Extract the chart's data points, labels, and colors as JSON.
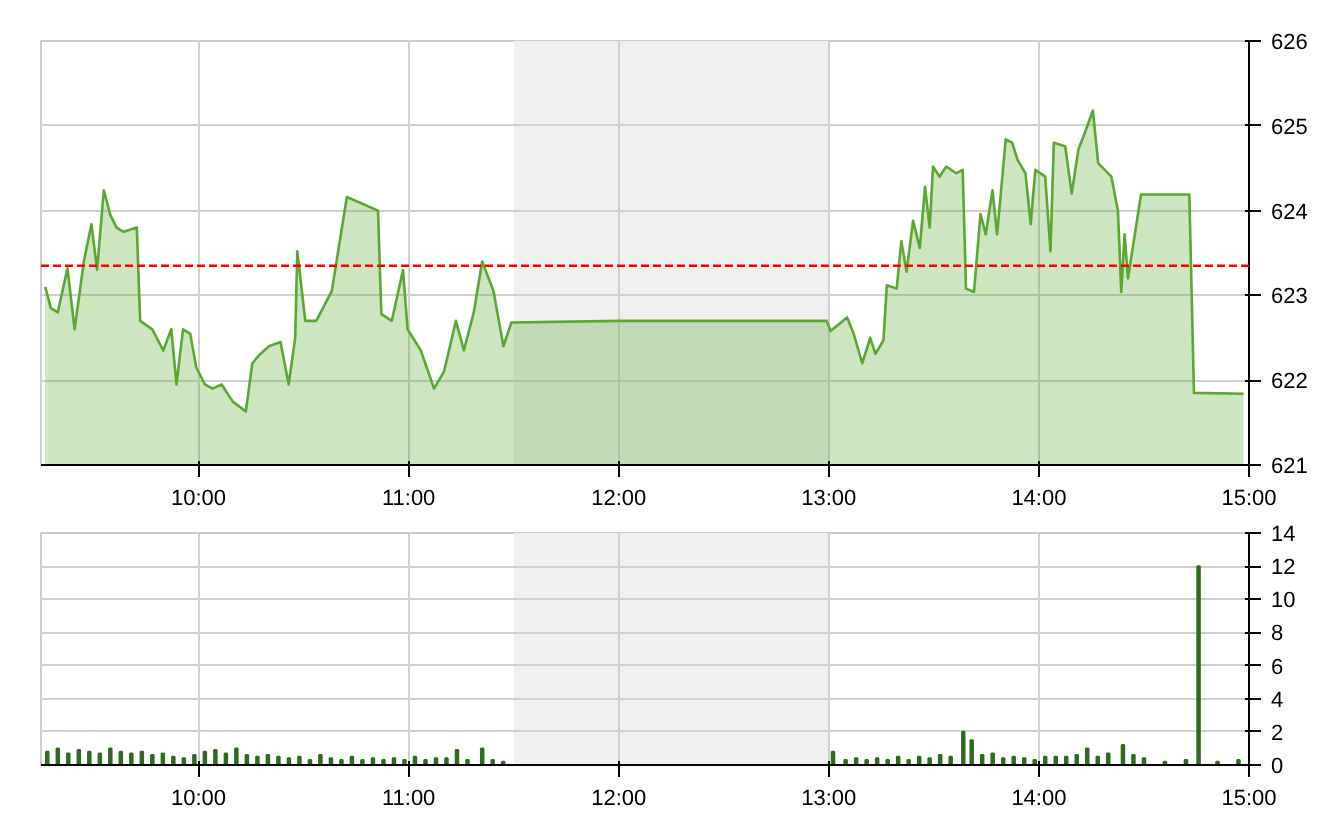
{
  "chart_data": [
    {
      "type": "area",
      "series": [
        {
          "color": "#5aa832",
          "x": [
            9.27,
            9.297,
            9.33,
            9.376,
            9.41,
            9.454,
            9.49,
            9.517,
            9.549,
            9.58,
            9.61,
            9.643,
            9.706,
            9.722,
            9.78,
            9.832,
            9.87,
            9.895,
            9.926,
            9.96,
            9.989,
            10.03,
            10.067,
            10.11,
            10.162,
            10.225,
            10.256,
            10.29,
            10.335,
            10.39,
            10.429,
            10.46,
            10.47,
            10.508,
            10.56,
            10.634,
            10.706,
            10.854,
            10.87,
            10.92,
            10.973,
            10.995,
            11.058,
            11.121,
            11.168,
            11.225,
            11.263,
            11.31,
            11.35,
            11.404,
            11.451,
            11.489,
            12.0,
            12.99,
            13.008,
            13.087,
            13.118,
            13.159,
            13.197,
            13.222,
            13.26,
            13.276,
            13.323,
            13.345,
            13.37,
            13.401,
            13.433,
            13.458,
            13.48,
            13.496,
            13.527,
            13.559,
            13.606,
            13.637,
            13.653,
            13.691,
            13.722,
            13.747,
            13.779,
            13.801,
            13.842,
            13.873,
            13.898,
            13.936,
            13.961,
            13.983,
            14.03,
            14.055,
            14.071,
            14.125,
            14.156,
            14.188,
            14.219,
            14.257,
            14.282,
            14.345,
            14.376,
            14.392,
            14.408,
            14.424,
            14.486,
            14.716,
            14.738,
            14.974
          ],
          "values": [
            623.1,
            622.85,
            622.8,
            623.32,
            622.6,
            623.4,
            623.84,
            623.3,
            624.24,
            623.95,
            623.8,
            623.75,
            623.8,
            622.7,
            622.6,
            622.35,
            622.6,
            621.95,
            622.6,
            622.55,
            622.15,
            621.95,
            621.9,
            621.95,
            621.75,
            621.63,
            622.2,
            622.3,
            622.4,
            622.45,
            621.95,
            622.5,
            623.52,
            622.7,
            622.7,
            623.05,
            624.16,
            624.0,
            622.78,
            622.7,
            623.3,
            622.6,
            622.35,
            621.9,
            622.1,
            622.7,
            622.35,
            622.8,
            623.4,
            623.05,
            622.4,
            622.68,
            622.7,
            622.7,
            622.58,
            622.74,
            622.55,
            622.2,
            622.5,
            622.31,
            622.47,
            623.12,
            623.08,
            623.64,
            623.28,
            623.88,
            623.56,
            624.28,
            623.8,
            624.52,
            624.4,
            624.52,
            624.44,
            624.48,
            623.08,
            623.04,
            623.96,
            623.72,
            624.24,
            623.72,
            624.84,
            624.8,
            624.6,
            624.44,
            623.84,
            624.48,
            624.4,
            623.52,
            624.8,
            624.76,
            624.2,
            624.72,
            624.92,
            625.18,
            624.56,
            624.4,
            624.0,
            623.04,
            623.72,
            623.2,
            624.19,
            624.19,
            621.85,
            621.84
          ]
        }
      ],
      "xlim": [
        9.25,
        15
      ],
      "xticks": [
        {
          "value": 10,
          "label": "10:00"
        },
        {
          "value": 11,
          "label": "11:00"
        },
        {
          "value": 12,
          "label": "12:00"
        },
        {
          "value": 13,
          "label": "13:00"
        },
        {
          "value": 14,
          "label": "14:00"
        },
        {
          "value": 15,
          "label": "15:00"
        }
      ],
      "ylim": [
        621,
        626
      ],
      "yticks": [
        621,
        622,
        623,
        624,
        625,
        626
      ],
      "ref_lines": [
        {
          "axis": "y",
          "value": 623.35,
          "color": "#ff0000",
          "line_style": "dashed"
        }
      ],
      "bands": [
        {
          "axis": "x",
          "from": 11.5,
          "to": 13,
          "color": "#f0f0f0"
        }
      ],
      "grid": true
    },
    {
      "type": "bar",
      "x": [
        9.28,
        9.33,
        9.38,
        9.43,
        9.48,
        9.53,
        9.58,
        9.63,
        9.68,
        9.73,
        9.78,
        9.83,
        9.88,
        9.93,
        9.98,
        10.03,
        10.08,
        10.13,
        10.18,
        10.23,
        10.28,
        10.33,
        10.38,
        10.43,
        10.48,
        10.53,
        10.58,
        10.63,
        10.68,
        10.73,
        10.78,
        10.83,
        10.88,
        10.93,
        10.98,
        11.03,
        11.08,
        11.13,
        11.18,
        11.23,
        11.28,
        11.35,
        11.4,
        11.45,
        13.02,
        13.08,
        13.13,
        13.18,
        13.23,
        13.28,
        13.33,
        13.38,
        13.43,
        13.48,
        13.53,
        13.58,
        13.64,
        13.68,
        13.73,
        13.78,
        13.83,
        13.88,
        13.93,
        13.98,
        14.03,
        14.08,
        14.13,
        14.18,
        14.23,
        14.28,
        14.33,
        14.4,
        14.45,
        14.5,
        14.6,
        14.7,
        14.76,
        14.85,
        14.95
      ],
      "values": [
        0.8,
        1.0,
        0.7,
        0.9,
        0.8,
        0.7,
        1.0,
        0.8,
        0.7,
        0.8,
        0.6,
        0.7,
        0.5,
        0.4,
        0.6,
        0.8,
        0.9,
        0.7,
        1.0,
        0.6,
        0.5,
        0.6,
        0.5,
        0.4,
        0.5,
        0.3,
        0.6,
        0.4,
        0.3,
        0.5,
        0.3,
        0.4,
        0.3,
        0.4,
        0.3,
        0.5,
        0.3,
        0.4,
        0.4,
        0.9,
        0.3,
        1.0,
        0.3,
        0.2,
        0.8,
        0.3,
        0.4,
        0.3,
        0.4,
        0.3,
        0.5,
        0.3,
        0.5,
        0.4,
        0.6,
        0.5,
        2.0,
        1.5,
        0.6,
        0.7,
        0.4,
        0.5,
        0.4,
        0.3,
        0.5,
        0.5,
        0.5,
        0.6,
        1.0,
        0.5,
        0.7,
        1.2,
        0.6,
        0.4,
        0.2,
        0.3,
        12.0,
        0.2,
        0.3
      ],
      "color": "#2e6b1e",
      "xlim": [
        9.25,
        15
      ],
      "xticks": [
        {
          "value": 10,
          "label": "10:00"
        },
        {
          "value": 11,
          "label": "11:00"
        },
        {
          "value": 12,
          "label": "12:00"
        },
        {
          "value": 13,
          "label": "13:00"
        },
        {
          "value": 14,
          "label": "14:00"
        },
        {
          "value": 15,
          "label": "15:00"
        }
      ],
      "ylim": [
        0,
        14
      ],
      "yticks": [
        0,
        2,
        4,
        6,
        8,
        10,
        12,
        14
      ],
      "bands": [
        {
          "axis": "x",
          "from": 11.5,
          "to": 13,
          "color": "#f0f0f0"
        }
      ],
      "grid": true
    }
  ]
}
